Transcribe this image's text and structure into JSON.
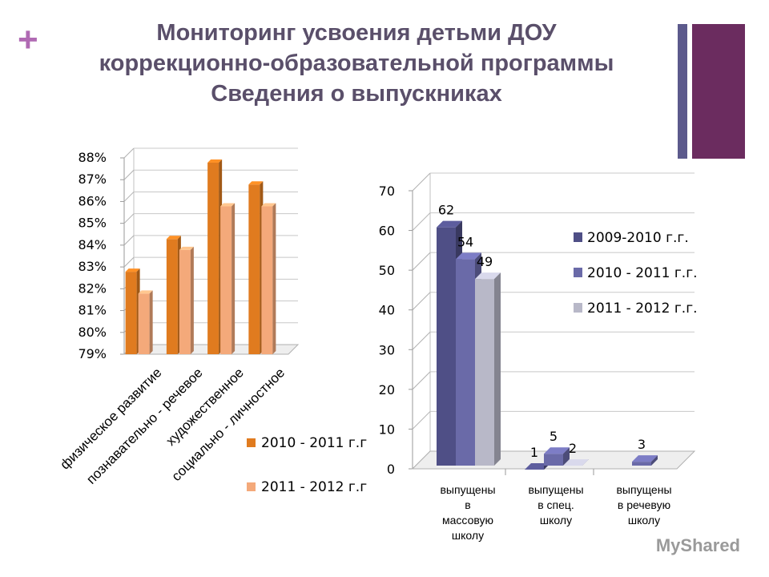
{
  "slide": {
    "plus_symbol": "+",
    "title_lines": [
      "Мониторинг усвоения детьми ДОУ",
      "коррекционно-образовательной программы",
      "Сведения о выпускниках"
    ],
    "watermark": "MyShared",
    "accent_colors": {
      "plus": "#b06ab3",
      "title": "#5a4f6a",
      "thin_bar": "#5c5a8c",
      "thick_bar": "#6b2c5f"
    }
  },
  "chart_data": [
    {
      "type": "bar",
      "title": "",
      "categories": [
        "физическое развитие",
        "познавательно - речевое",
        "художественное",
        "социально - личностное"
      ],
      "series": [
        {
          "name": "2010 - 2011 г.г",
          "values": [
            83,
            84.5,
            88,
            87
          ],
          "color": "#e07b1f"
        },
        {
          "name": "2011 - 2012 г.г",
          "values": [
            82,
            84,
            86,
            86
          ],
          "color": "#f4a97a"
        }
      ],
      "ylim": [
        79,
        88
      ],
      "y_ticks": [
        "79%",
        "80%",
        "81%",
        "82%",
        "83%",
        "84%",
        "85%",
        "86%",
        "87%",
        "88%"
      ],
      "grid": true,
      "legend": "bottom-right"
    },
    {
      "type": "bar",
      "title": "",
      "categories": [
        "выпущены в массовую школу",
        "выпущены в спец. школу",
        "выпущены в речевую школу"
      ],
      "category_lines": [
        [
          "выпущены",
          "в",
          "массовую",
          "школу"
        ],
        [
          "выпущены",
          "в спец.",
          "школу"
        ],
        [
          "выпущены",
          "в речевую",
          "школу"
        ]
      ],
      "series": [
        {
          "name": "2009-2010 г.г.",
          "values": [
            62,
            1,
            null
          ],
          "labels": [
            "62",
            "1",
            ""
          ],
          "color": "#4f4f86"
        },
        {
          "name": "2010 - 2011 г.г.",
          "values": [
            54,
            5,
            3
          ],
          "labels": [
            "54",
            "5",
            "3"
          ],
          "color": "#6a6aa8"
        },
        {
          "name": "2011 - 2012 г.г.",
          "values": [
            49,
            2,
            null
          ],
          "labels": [
            "49",
            "2",
            ""
          ],
          "color": "#b8b8c8"
        }
      ],
      "ylim": [
        0,
        70
      ],
      "y_ticks": [
        "0",
        "10",
        "20",
        "30",
        "40",
        "50",
        "60",
        "70"
      ],
      "grid": true,
      "legend": "right"
    }
  ]
}
